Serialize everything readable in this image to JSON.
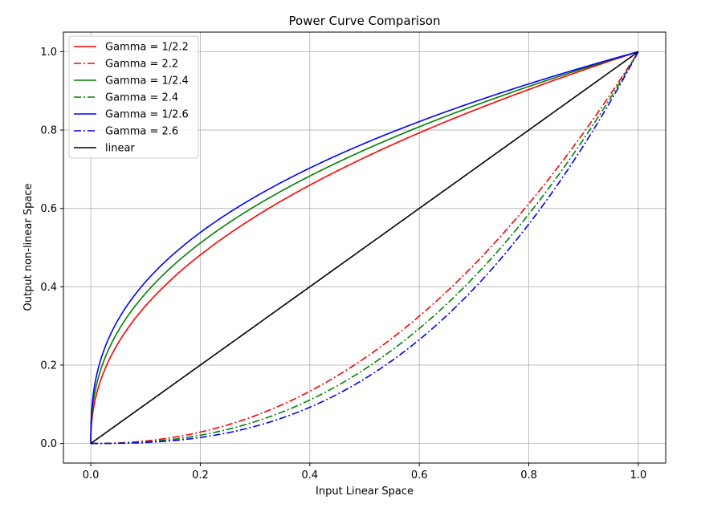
{
  "chart_data": {
    "type": "line",
    "title": "Power Curve Comparison",
    "xlabel": "Input Linear Space",
    "ylabel": "Output non-linear Space",
    "xlim": [
      -0.05,
      1.05
    ],
    "ylim": [
      -0.05,
      1.05
    ],
    "xticks": [
      0.0,
      0.2,
      0.4,
      0.6,
      0.8,
      1.0
    ],
    "yticks": [
      0.0,
      0.2,
      0.4,
      0.6,
      0.8,
      1.0
    ],
    "xtick_labels": [
      "0.0",
      "0.2",
      "0.4",
      "0.6",
      "0.8",
      "1.0"
    ],
    "ytick_labels": [
      "0.0",
      "0.2",
      "0.4",
      "0.6",
      "0.8",
      "1.0"
    ],
    "grid": true,
    "legend_position": "top-left",
    "series": [
      {
        "name": "Gamma = 1/2.2",
        "color": "#ff0000",
        "dash": "solid",
        "exponent": 0.45454545,
        "x": [
          0.0,
          0.01,
          0.05,
          0.1,
          0.2,
          0.3,
          0.4,
          0.5,
          0.6,
          0.7,
          0.8,
          0.9,
          1.0
        ],
        "y": [
          0.0,
          0.123,
          0.256,
          0.351,
          0.481,
          0.579,
          0.659,
          0.73,
          0.793,
          0.85,
          0.904,
          0.953,
          1.0
        ]
      },
      {
        "name": "Gamma = 2.2",
        "color": "#ff0000",
        "dash": "dashdot",
        "exponent": 2.2,
        "x": [
          0.0,
          0.1,
          0.2,
          0.3,
          0.4,
          0.5,
          0.6,
          0.7,
          0.8,
          0.9,
          1.0
        ],
        "y": [
          0.0,
          0.006,
          0.029,
          0.071,
          0.133,
          0.218,
          0.325,
          0.456,
          0.612,
          0.793,
          1.0
        ]
      },
      {
        "name": "Gamma = 1/2.4",
        "color": "#008000",
        "dash": "solid",
        "exponent": 0.41666667,
        "x": [
          0.0,
          0.01,
          0.05,
          0.1,
          0.2,
          0.3,
          0.4,
          0.5,
          0.6,
          0.7,
          0.8,
          0.9,
          1.0
        ],
        "y": [
          0.0,
          0.147,
          0.287,
          0.383,
          0.512,
          0.606,
          0.683,
          0.749,
          0.808,
          0.862,
          0.911,
          0.957,
          1.0
        ]
      },
      {
        "name": "Gamma = 2.4",
        "color": "#008000",
        "dash": "dashdot",
        "exponent": 2.4,
        "x": [
          0.0,
          0.1,
          0.2,
          0.3,
          0.4,
          0.5,
          0.6,
          0.7,
          0.8,
          0.9,
          1.0
        ],
        "y": [
          0.0,
          0.004,
          0.021,
          0.056,
          0.111,
          0.189,
          0.293,
          0.425,
          0.586,
          0.777,
          1.0
        ]
      },
      {
        "name": "Gamma = 1/2.6",
        "color": "#0000ff",
        "dash": "solid",
        "exponent": 0.38461538,
        "x": [
          0.0,
          0.01,
          0.05,
          0.1,
          0.2,
          0.3,
          0.4,
          0.5,
          0.6,
          0.7,
          0.8,
          0.9,
          1.0
        ],
        "y": [
          0.0,
          0.17,
          0.316,
          0.412,
          0.539,
          0.629,
          0.703,
          0.766,
          0.822,
          0.872,
          0.918,
          0.96,
          1.0
        ]
      },
      {
        "name": "Gamma = 2.6",
        "color": "#0000ff",
        "dash": "dashdot",
        "exponent": 2.6,
        "x": [
          0.0,
          0.1,
          0.2,
          0.3,
          0.4,
          0.5,
          0.6,
          0.7,
          0.8,
          0.9,
          1.0
        ],
        "y": [
          0.0,
          0.003,
          0.015,
          0.044,
          0.092,
          0.165,
          0.265,
          0.396,
          0.56,
          0.76,
          1.0
        ]
      },
      {
        "name": "linear",
        "color": "#000000",
        "dash": "solid",
        "exponent": 1.0,
        "x": [
          0.0,
          1.0
        ],
        "y": [
          0.0,
          1.0
        ]
      }
    ]
  }
}
